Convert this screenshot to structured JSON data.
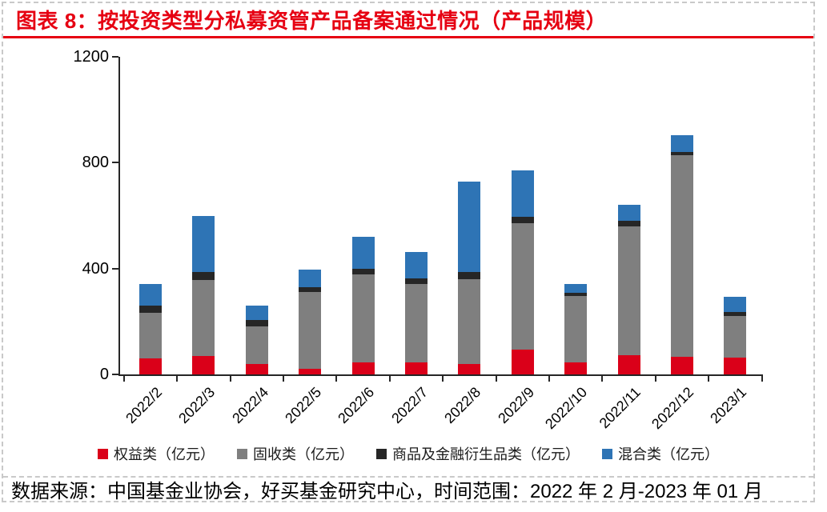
{
  "figure": {
    "title": "图表 8：按投资类型分私募资管产品备案通过情况（产品规模）",
    "source_note": "数据来源：中国基金业协会，好买基金研究中心，时间范围：2022 年 2 月-2023 年 01 月"
  },
  "colors": {
    "title_red": "#e60012",
    "equity_red": "#da0019",
    "fixed_income_gray": "#7f7f7f",
    "commodity_black": "#262626",
    "mixed_blue": "#2e74b5",
    "axis": "#262626",
    "frame_dash": "#c9c9c9"
  },
  "chart_data": {
    "type": "bar",
    "stacked": true,
    "title": "按投资类型分私募资管产品备案通过情况（产品规模）",
    "categories": [
      "2022/2",
      "2022/3",
      "2022/4",
      "2022/5",
      "2022/6",
      "2022/7",
      "2022/8",
      "2022/9",
      "2022/10",
      "2022/11",
      "2022/12",
      "2023/1"
    ],
    "series": [
      {
        "name": "权益类（亿元）",
        "color": "#da0019",
        "values": [
          60,
          70,
          40,
          20,
          45,
          45,
          38,
          95,
          45,
          72,
          65,
          62
        ]
      },
      {
        "name": "固收类（亿元）",
        "color": "#7f7f7f",
        "values": [
          174,
          288,
          142,
          290,
          332,
          298,
          323,
          476,
          250,
          487,
          764,
          160
        ]
      },
      {
        "name": "商品及金融衍生品类（亿元）",
        "color": "#262626",
        "values": [
          26,
          28,
          24,
          18,
          21,
          21,
          25,
          24,
          12,
          21,
          12,
          15
        ]
      },
      {
        "name": "混合类（亿元）",
        "color": "#2e74b5",
        "values": [
          83,
          214,
          55,
          67,
          121,
          98,
          343,
          176,
          36,
          61,
          64,
          55
        ]
      }
    ],
    "totals": [
      343,
      600,
      261,
      395,
      519,
      462,
      729,
      771,
      343,
      641,
      905,
      292
    ],
    "ylim": [
      0,
      1200
    ],
    "yticks": [
      0,
      400,
      800,
      1200
    ],
    "grid": false,
    "legend_position": "bottom",
    "x_tick_rotation": -45
  }
}
